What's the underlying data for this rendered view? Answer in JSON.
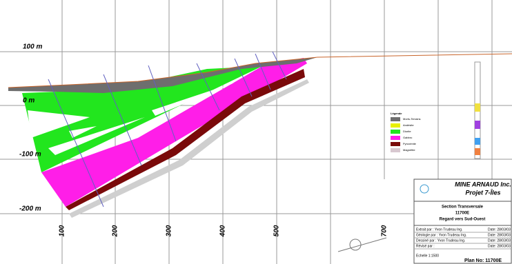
{
  "elevation_labels": [
    "100 m",
    "0 m",
    "-100 m",
    "-200 m"
  ],
  "easting_labels": [
    "100",
    "200",
    "300",
    "400",
    "500",
    "700"
  ],
  "legend": {
    "title": "Légende",
    "items": [
      {
        "label": "Morts-Terrains",
        "color": "#6e6e6e"
      },
      {
        "label": "Andésite",
        "color": "#e8f000"
      },
      {
        "label": "Diorite",
        "color": "#22e61e"
      },
      {
        "label": "Gabbro",
        "color": "#ff1ee8"
      },
      {
        "label": "Pyroxénite",
        "color": "#7a0a0a"
      },
      {
        "label": "Magnétite",
        "color": "#d8c8d0"
      }
    ]
  },
  "title_block": {
    "company": "MINE ARNAUD Inc.",
    "project": "Projet 7-Îles",
    "section": "Section Transversale",
    "section_id": "11700E",
    "view": "Regard vers Sud-Ouest",
    "rows": [
      {
        "label": "Extrait par : Yvon Trudeau Ing.",
        "date": "Date: 28/03/03"
      },
      {
        "label": "Géologie par : Yvon Trudeau Ing.",
        "date": "Date: 28/03/03"
      },
      {
        "label": "Dessiné par : Yvon Trudeau Ing.",
        "date": "Date: 28/03/03"
      },
      {
        "label": "Révisé par :",
        "date": "Date: 28/03/03"
      }
    ],
    "scale": "Echelle 1:1500",
    "plan": "Plan No: 11700E"
  }
}
